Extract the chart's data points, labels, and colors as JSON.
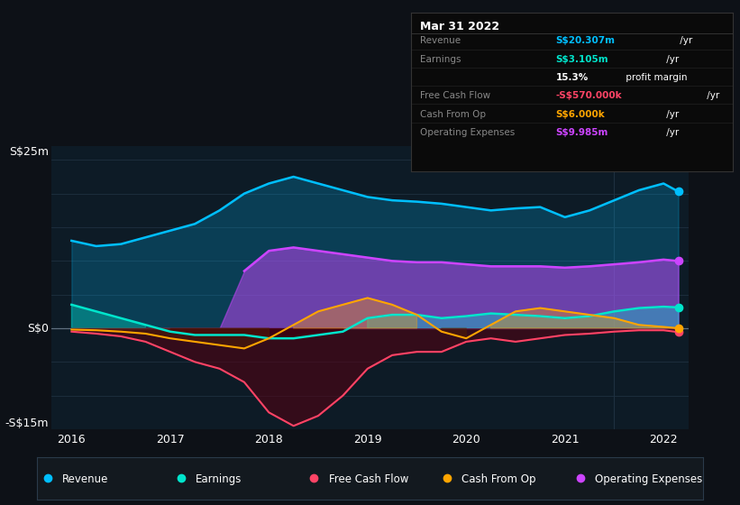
{
  "bg_color": "#0d1117",
  "plot_bg_color": "#0d1b26",
  "grid_color": "#1e3040",
  "zero_line_color": "#607080",
  "years": [
    2016.0,
    2016.25,
    2016.5,
    2016.75,
    2017.0,
    2017.25,
    2017.5,
    2017.75,
    2018.0,
    2018.25,
    2018.5,
    2018.75,
    2019.0,
    2019.25,
    2019.5,
    2019.75,
    2020.0,
    2020.25,
    2020.5,
    2020.75,
    2021.0,
    2021.25,
    2021.5,
    2021.75,
    2022.0,
    2022.15
  ],
  "revenue": [
    13.0,
    12.2,
    12.5,
    13.5,
    14.5,
    15.5,
    17.5,
    20.0,
    21.5,
    22.5,
    21.5,
    20.5,
    19.5,
    19.0,
    18.8,
    18.5,
    18.0,
    17.5,
    17.8,
    18.0,
    16.5,
    17.5,
    19.0,
    20.5,
    21.5,
    20.3
  ],
  "earnings": [
    3.5,
    2.5,
    1.5,
    0.5,
    -0.5,
    -1.0,
    -1.0,
    -1.0,
    -1.5,
    -1.5,
    -1.0,
    -0.5,
    1.5,
    2.0,
    2.0,
    1.5,
    1.8,
    2.2,
    2.0,
    1.8,
    1.5,
    1.8,
    2.5,
    3.0,
    3.2,
    3.1
  ],
  "free_cash_flow": [
    -0.5,
    -0.8,
    -1.2,
    -2.0,
    -3.5,
    -5.0,
    -6.0,
    -8.0,
    -12.5,
    -14.5,
    -13.0,
    -10.0,
    -6.0,
    -4.0,
    -3.5,
    -3.5,
    -2.0,
    -1.5,
    -2.0,
    -1.5,
    -1.0,
    -0.8,
    -0.5,
    -0.3,
    -0.3,
    -0.57
  ],
  "cash_from_op": [
    -0.2,
    -0.3,
    -0.5,
    -0.8,
    -1.5,
    -2.0,
    -2.5,
    -3.0,
    -1.5,
    0.5,
    2.5,
    3.5,
    4.5,
    3.5,
    2.0,
    -0.5,
    -1.5,
    0.5,
    2.5,
    3.0,
    2.5,
    2.0,
    1.5,
    0.5,
    0.2,
    0.006
  ],
  "op_expenses": [
    0.0,
    0.0,
    0.0,
    0.0,
    0.0,
    0.0,
    0.0,
    8.5,
    11.5,
    12.0,
    11.5,
    11.0,
    10.5,
    10.0,
    9.8,
    9.8,
    9.5,
    9.2,
    9.2,
    9.2,
    9.0,
    9.2,
    9.5,
    9.8,
    10.2,
    9.985
  ],
  "revenue_color": "#00bfff",
  "earnings_color": "#00e5cc",
  "fcf_color": "#ff4466",
  "cashop_color": "#ffa500",
  "opex_color": "#cc44ff",
  "ylabel_top": "S$25m",
  "ylabel_zero": "S$0",
  "ylabel_bottom": "-S$15m",
  "ylim": [
    -15,
    27
  ],
  "xticks": [
    2016,
    2017,
    2018,
    2019,
    2020,
    2021,
    2022
  ],
  "info_box": {
    "title": "Mar 31 2022",
    "rows": [
      {
        "label": "Revenue",
        "value": "S$20.307m",
        "unit": " /yr",
        "color": "#00bfff"
      },
      {
        "label": "Earnings",
        "value": "S$3.105m",
        "unit": " /yr",
        "color": "#00e5cc"
      },
      {
        "label": "",
        "value": "15.3%",
        "unit": " profit margin",
        "color": "white"
      },
      {
        "label": "Free Cash Flow",
        "value": "-S$570.000k",
        "unit": " /yr",
        "color": "#ff4466"
      },
      {
        "label": "Cash From Op",
        "value": "S$6.000k",
        "unit": " /yr",
        "color": "#ffa500"
      },
      {
        "label": "Operating Expenses",
        "value": "S$9.985m",
        "unit": " /yr",
        "color": "#cc44ff"
      }
    ]
  },
  "legend": [
    {
      "label": "Revenue",
      "color": "#00bfff"
    },
    {
      "label": "Earnings",
      "color": "#00e5cc"
    },
    {
      "label": "Free Cash Flow",
      "color": "#ff4466"
    },
    {
      "label": "Cash From Op",
      "color": "#ffa500"
    },
    {
      "label": "Operating Expenses",
      "color": "#cc44ff"
    }
  ],
  "separator_x": 2021.5
}
